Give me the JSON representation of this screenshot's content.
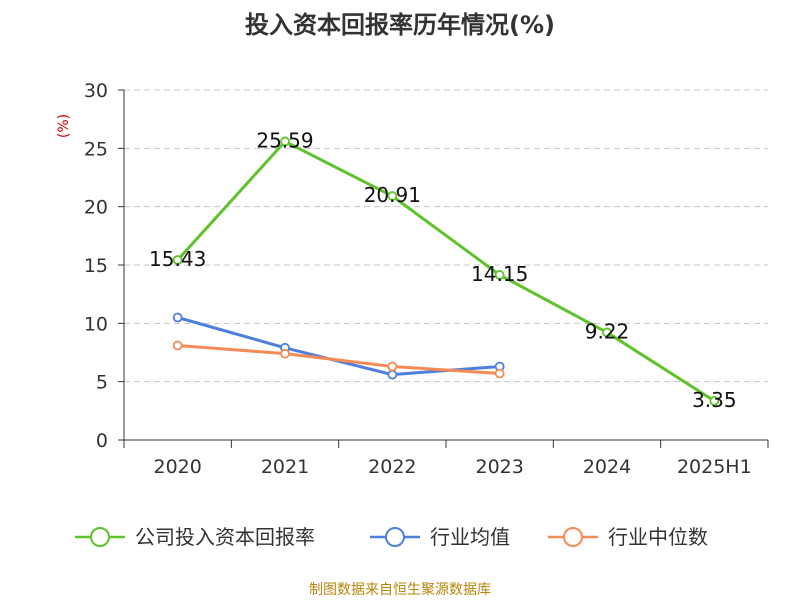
{
  "chart_data": {
    "type": "line",
    "title": "投入资本回报率历年情况(%)",
    "unit_label": "(%)",
    "categories": [
      "2020",
      "2021",
      "2022",
      "2023",
      "2024",
      "2025H1"
    ],
    "ylim": [
      0,
      30
    ],
    "yticks": [
      "0",
      "5",
      "10",
      "15",
      "20",
      "25",
      "30"
    ],
    "grid": true,
    "legend_position": "bottom",
    "series": [
      {
        "name": "公司投入资本回报率",
        "color": "#5fc22c",
        "values": [
          15.43,
          25.59,
          20.91,
          14.15,
          9.22,
          3.35
        ],
        "labels": [
          "15.43",
          "25.59",
          "20.91",
          "14.15",
          "9.22",
          "3.35"
        ]
      },
      {
        "name": "行业均值",
        "color": "#4f7fdc",
        "values": [
          10.5,
          7.9,
          5.6,
          6.3,
          null,
          null
        ]
      },
      {
        "name": "行业中位数",
        "color": "#f48a55",
        "values": [
          8.1,
          7.4,
          6.3,
          5.7,
          null,
          null
        ]
      }
    ]
  },
  "source": "制图数据来自恒生聚源数据库"
}
